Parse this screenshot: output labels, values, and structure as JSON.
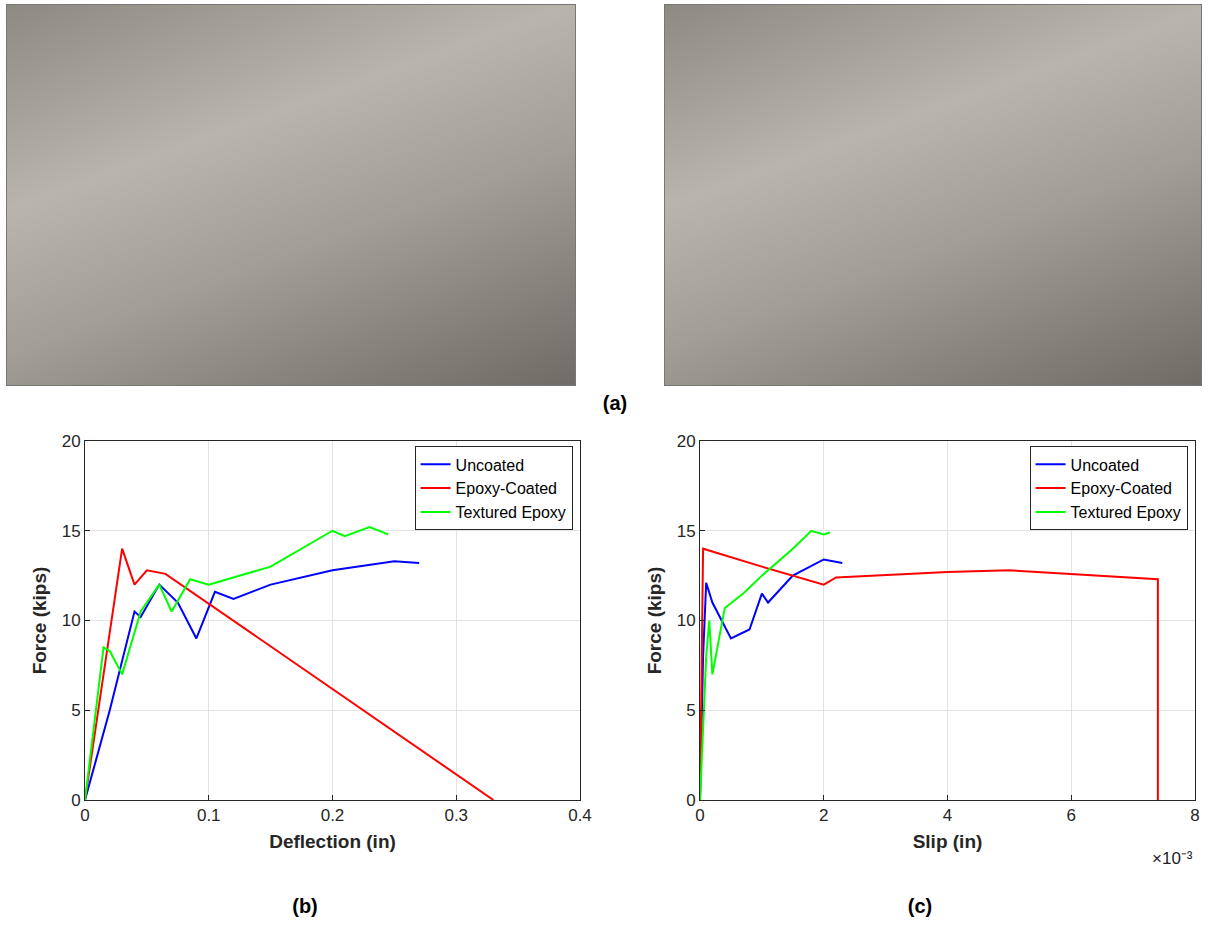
{
  "photo_panel": {
    "label": "(a)"
  },
  "chart_data": [
    {
      "type": "line",
      "label": "(b)",
      "x_label": "Deflection (in)",
      "y_label": "Force (kips)",
      "xlim": [
        0,
        0.4
      ],
      "xticks": [
        0,
        0.1,
        0.2,
        0.3,
        0.4
      ],
      "ylim": [
        0,
        20
      ],
      "yticks": [
        0,
        5,
        10,
        15,
        20
      ],
      "grid": true,
      "legend": "upper right",
      "series": [
        {
          "name": "Uncoated",
          "color": "#0000ff",
          "x": [
            0,
            0.02,
            0.04,
            0.045,
            0.06,
            0.075,
            0.09,
            0.105,
            0.12,
            0.15,
            0.2,
            0.25,
            0.27
          ],
          "values": [
            0,
            5,
            10.5,
            10.2,
            12,
            11,
            9,
            11.6,
            11.2,
            12,
            12.8,
            13.3,
            13.2
          ]
        },
        {
          "name": "Epoxy-Coated",
          "color": "#ff0000",
          "x": [
            0,
            0.03,
            0.04,
            0.05,
            0.065,
            0.33
          ],
          "values": [
            0,
            14,
            12,
            12.8,
            12.6,
            0
          ]
        },
        {
          "name": "Textured Epoxy",
          "color": "#00ff00",
          "x": [
            0,
            0.015,
            0.02,
            0.03,
            0.045,
            0.06,
            0.07,
            0.085,
            0.1,
            0.15,
            0.2,
            0.21,
            0.23,
            0.245
          ],
          "values": [
            0,
            8.5,
            8.3,
            7,
            10.5,
            12,
            10.5,
            12.3,
            12,
            13,
            15,
            14.7,
            15.2,
            14.8
          ]
        }
      ]
    },
    {
      "type": "line",
      "label": "(c)",
      "x_label": "Slip (in)",
      "y_label": "Force (kips)",
      "annotations": [
        "×10⁻³"
      ],
      "xlim": [
        0,
        0.008
      ],
      "xticks": [
        0,
        {
          "value": 0.002,
          "label": "2"
        },
        {
          "value": 0.004,
          "label": "4"
        },
        {
          "value": 0.006,
          "label": "6"
        },
        {
          "value": 0.008,
          "label": "8"
        }
      ],
      "ylim": [
        0,
        20
      ],
      "yticks": [
        0,
        5,
        10,
        15,
        20
      ],
      "grid": true,
      "legend": "upper right",
      "series": [
        {
          "name": "Uncoated",
          "color": "#0000ff",
          "x": [
            0,
            5e-05,
            0.0001,
            0.0002,
            0.0005,
            0.0008,
            0.001,
            0.0011,
            0.0015,
            0.002,
            0.0023
          ],
          "values": [
            0,
            8,
            12.1,
            11,
            9,
            9.5,
            11.5,
            11,
            12.5,
            13.4,
            13.2
          ]
        },
        {
          "name": "Epoxy-Coated",
          "color": "#ff0000",
          "x": [
            0,
            5e-05,
            0.001,
            0.002,
            0.0022,
            0.004,
            0.005,
            0.007,
            0.0074,
            0.0074
          ],
          "values": [
            0,
            14,
            13,
            12,
            12.4,
            12.7,
            12.8,
            12.4,
            12.3,
            0
          ]
        },
        {
          "name": "Textured Epoxy",
          "color": "#00ff00",
          "x": [
            0,
            0.0001,
            0.00015,
            0.0002,
            0.0004,
            0.0007,
            0.001,
            0.0015,
            0.0018,
            0.002,
            0.0021
          ],
          "values": [
            0,
            8,
            10,
            7,
            10.7,
            11.5,
            12.5,
            14,
            15,
            14.8,
            14.9
          ]
        }
      ]
    }
  ]
}
